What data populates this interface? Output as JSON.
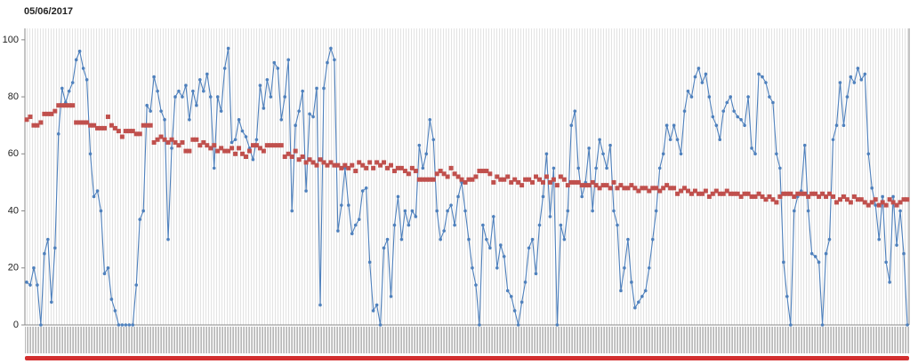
{
  "chart_data": {
    "type": "line",
    "title": "05/06/2017",
    "ylim": [
      0,
      104
    ],
    "yticks": [
      0,
      20,
      40,
      60,
      80,
      100
    ],
    "series": [
      {
        "color": "#4f81bd",
        "marker": "circle",
        "values": [
          15,
          14,
          20,
          14,
          0,
          25,
          30,
          8,
          27,
          67,
          83,
          78,
          82,
          85,
          93,
          96,
          90,
          86,
          60,
          45,
          47,
          40,
          18,
          20,
          9,
          5,
          0,
          0,
          0,
          0,
          0,
          14,
          37,
          40,
          77,
          75,
          87,
          82,
          75,
          72,
          30,
          62,
          80,
          82,
          80,
          84,
          72,
          82,
          77,
          86,
          82,
          88,
          80,
          55,
          80,
          75,
          90,
          97,
          64,
          65,
          72,
          68,
          66,
          62,
          58,
          65,
          84,
          76,
          86,
          80,
          92,
          90,
          72,
          80,
          93,
          40,
          70,
          75,
          82,
          47,
          74,
          73,
          83,
          7,
          83,
          92,
          97,
          93,
          33,
          42,
          55,
          42,
          32,
          35,
          37,
          47,
          48,
          22,
          5,
          7,
          0,
          27,
          30,
          10,
          35,
          45,
          30,
          40,
          35,
          40,
          38,
          63,
          55,
          60,
          72,
          65,
          40,
          30,
          33,
          40,
          42,
          35,
          45,
          50,
          40,
          30,
          20,
          14,
          0,
          35,
          30,
          27,
          38,
          20,
          28,
          24,
          12,
          10,
          5,
          0,
          8,
          15,
          27,
          30,
          18,
          35,
          45,
          60,
          38,
          55,
          0,
          35,
          30,
          40,
          70,
          75,
          55,
          45,
          50,
          62,
          40,
          55,
          65,
          60,
          55,
          63,
          40,
          35,
          12,
          20,
          30,
          15,
          6,
          8,
          10,
          12,
          20,
          30,
          40,
          55,
          60,
          70,
          65,
          70,
          65,
          60,
          75,
          82,
          80,
          87,
          90,
          85,
          88,
          80,
          73,
          70,
          65,
          75,
          78,
          80,
          75,
          73,
          72,
          70,
          80,
          62,
          60,
          88,
          87,
          85,
          80,
          78,
          60,
          55,
          22,
          10,
          0,
          40,
          45,
          47,
          63,
          40,
          25,
          24,
          22,
          0,
          25,
          30,
          65,
          70,
          85,
          70,
          80,
          87,
          85,
          90,
          86,
          88,
          60,
          48,
          42,
          30,
          45,
          22,
          15,
          45,
          28,
          40,
          25,
          0
        ]
      },
      {
        "color": "#c0504d",
        "marker": "square",
        "line": false,
        "values": [
          72,
          73,
          70,
          70,
          71,
          74,
          74,
          74,
          75,
          77,
          77,
          77,
          77,
          77,
          71,
          71,
          71,
          71,
          70,
          70,
          69,
          69,
          69,
          73,
          70,
          69,
          68,
          66,
          68,
          68,
          68,
          67,
          67,
          70,
          70,
          70,
          64,
          65,
          66,
          65,
          64,
          65,
          64,
          63,
          64,
          61,
          61,
          65,
          65,
          63,
          64,
          63,
          62,
          63,
          61,
          62,
          61,
          61,
          62,
          60,
          62,
          60,
          59,
          61,
          63,
          63,
          62,
          61,
          63,
          63,
          63,
          63,
          63,
          59,
          60,
          59,
          61,
          58,
          59,
          57,
          58,
          57,
          56,
          58,
          57,
          56,
          57,
          56,
          56,
          55,
          56,
          55,
          56,
          54,
          57,
          56,
          55,
          57,
          55,
          57,
          56,
          57,
          55,
          56,
          54,
          55,
          55,
          54,
          53,
          55,
          54,
          51,
          51,
          51,
          51,
          51,
          53,
          54,
          53,
          52,
          55,
          53,
          52,
          51,
          50,
          51,
          51,
          52,
          54,
          54,
          54,
          53,
          50,
          52,
          51,
          51,
          52,
          50,
          51,
          50,
          49,
          51,
          51,
          50,
          52,
          51,
          50,
          52,
          50,
          51,
          49,
          52,
          51,
          49,
          50,
          50,
          50,
          49,
          49,
          49,
          50,
          49,
          48,
          49,
          49,
          48,
          50,
          48,
          49,
          48,
          48,
          49,
          48,
          47,
          48,
          48,
          47,
          48,
          48,
          47,
          48,
          49,
          48,
          48,
          46,
          47,
          48,
          47,
          46,
          47,
          46,
          46,
          47,
          45,
          46,
          47,
          46,
          46,
          47,
          46,
          46,
          46,
          45,
          46,
          46,
          45,
          45,
          46,
          45,
          44,
          45,
          44,
          43,
          45,
          46,
          46,
          46,
          45,
          46,
          46,
          46,
          45,
          46,
          46,
          45,
          46,
          45,
          46,
          45,
          43,
          44,
          45,
          44,
          43,
          45,
          44,
          44,
          43,
          42,
          43,
          44,
          42,
          43,
          42,
          44,
          43,
          42,
          43,
          44,
          44
        ]
      }
    ]
  }
}
